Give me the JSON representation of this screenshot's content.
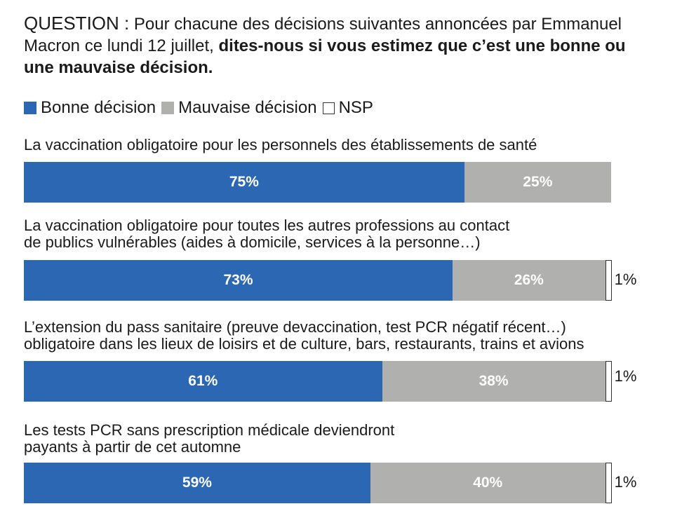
{
  "question": {
    "label": "QUESTION :",
    "text": " Pour chacune des décisions suivantes annoncées par Emmanuel Macron ce lundi 12 juillet, ",
    "bold": "dites-nous si vous estimez que c’est une bonne ou une mauvaise décision."
  },
  "legend": [
    {
      "label": "Bonne décision",
      "color": "#2b67b2"
    },
    {
      "label": "Mauvaise décision",
      "color": "#b0b0ae"
    },
    {
      "label": "NSP",
      "color": "#ffffff"
    }
  ],
  "chart_data": {
    "type": "bar",
    "orientation": "horizontal",
    "stacked": true,
    "title": "Pour chacune des décisions suivantes annoncées par Emmanuel Macron ce lundi 12 juillet, dites-nous si vous estimez que c’est une bonne ou une mauvaise décision.",
    "unit": "%",
    "categories": [
      [
        "La vaccination obligatoire pour les personnels des établissements de santé"
      ],
      [
        "La vaccination obligatoire pour toutes les autres professions au contact",
        "de publics vulnérables (aides à domicile, services à la personne…)"
      ],
      [
        "L’extension du pass sanitaire (preuve devaccination, test PCR négatif récent…)",
        "obligatoire dans les lieux de loisirs et de culture, bars, restaurants, trains et avions"
      ],
      [
        "Les tests PCR sans prescription médicale deviendront",
        "payants à partir de cet automne"
      ]
    ],
    "series": [
      {
        "name": "Bonne décision",
        "values": [
          75,
          73,
          61,
          59
        ],
        "labels": [
          "75%",
          "73%",
          "61%",
          "59%"
        ]
      },
      {
        "name": "Mauvaise décision",
        "values": [
          25,
          26,
          38,
          40
        ],
        "labels": [
          "25%",
          "26%",
          "38%",
          "40%"
        ]
      },
      {
        "name": "NSP",
        "values": [
          0,
          1,
          1,
          1
        ],
        "labels": [
          "",
          "1%",
          "1%",
          "1%"
        ]
      }
    ],
    "xlim": [
      0,
      100
    ]
  }
}
